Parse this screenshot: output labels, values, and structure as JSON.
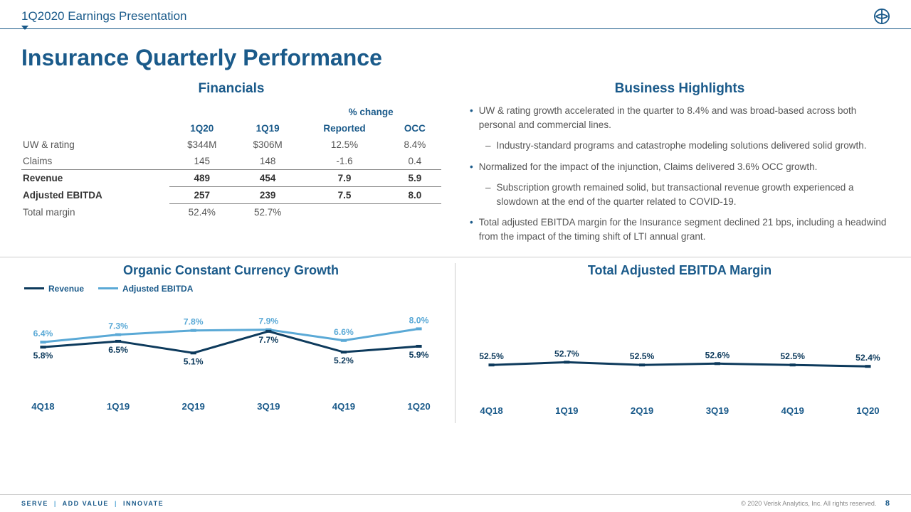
{
  "header": {
    "title": "1Q2020 Earnings Presentation"
  },
  "main_title": "Insurance Quarterly Performance",
  "financials": {
    "title": "Financials",
    "pct_change_label": "% change",
    "col_1q20": "1Q20",
    "col_1q19": "1Q19",
    "col_reported": "Reported",
    "col_occ": "OCC",
    "rows": [
      {
        "label": "UW & rating",
        "v1": "$344M",
        "v2": "$306M",
        "v3": "12.5%",
        "v4": "8.4%"
      },
      {
        "label": "Claims",
        "v1": "145",
        "v2": "148",
        "v3": "-1.6",
        "v4": "0.4"
      },
      {
        "label": "Revenue",
        "v1": "489",
        "v2": "454",
        "v3": "7.9",
        "v4": "5.9"
      },
      {
        "label": "Adjusted EBITDA",
        "v1": "257",
        "v2": "239",
        "v3": "7.5",
        "v4": "8.0"
      },
      {
        "label": "Total margin",
        "v1": "52.4%",
        "v2": "52.7%",
        "v3": "",
        "v4": ""
      }
    ]
  },
  "highlights": {
    "title": "Business Highlights",
    "items": [
      {
        "text": "UW & rating growth accelerated in the quarter to 8.4% and was broad-based across both personal and commercial lines.",
        "sub": "Industry-standard programs and catastrophe modeling solutions delivered solid growth."
      },
      {
        "text": "Normalized for the impact of the injunction, Claims delivered 3.6% OCC growth.",
        "sub": "Subscription growth remained solid, but transactional revenue growth experienced a slowdown at the end of the quarter related to COVID-19."
      },
      {
        "text": "Total adjusted EBITDA margin for the Insurance segment declined 21 bps, including a headwind from the impact of the timing shift of LTI annual grant.",
        "sub": ""
      }
    ]
  },
  "chart_occ": {
    "title": "Organic Constant Currency Growth",
    "legend_revenue": "Revenue",
    "legend_ebitda": "Adjusted EBITDA",
    "color_revenue": "#0d3a5c",
    "color_ebitda": "#5aa9d6",
    "categories": [
      "4Q18",
      "1Q19",
      "2Q19",
      "3Q19",
      "4Q19",
      "1Q20"
    ],
    "revenue": [
      5.8,
      6.5,
      5.1,
      7.7,
      5.2,
      5.9
    ],
    "revenue_labels": [
      "5.8%",
      "6.5%",
      "5.1%",
      "7.7%",
      "5.2%",
      "5.9%"
    ],
    "ebitda": [
      6.4,
      7.3,
      7.8,
      7.9,
      6.6,
      8.0
    ],
    "ebitda_labels": [
      "6.4%",
      "7.3%",
      "7.8%",
      "7.9%",
      "6.6%",
      "8.0%"
    ],
    "ymin": 0,
    "ymax": 10
  },
  "chart_margin": {
    "title": "Total Adjusted EBITDA Margin",
    "color": "#0d3a5c",
    "categories": [
      "4Q18",
      "1Q19",
      "2Q19",
      "3Q19",
      "4Q19",
      "1Q20"
    ],
    "values": [
      52.5,
      52.7,
      52.5,
      52.6,
      52.5,
      52.4
    ],
    "labels": [
      "52.5%",
      "52.7%",
      "52.5%",
      "52.6%",
      "52.5%",
      "52.4%"
    ],
    "ymin": 50,
    "ymax": 56
  },
  "footer": {
    "tagline_1": "SERVE",
    "tagline_2": "ADD VALUE",
    "tagline_3": "INNOVATE",
    "copyright": "© 2020 Verisk Analytics, Inc. All rights reserved.",
    "page": "8"
  }
}
